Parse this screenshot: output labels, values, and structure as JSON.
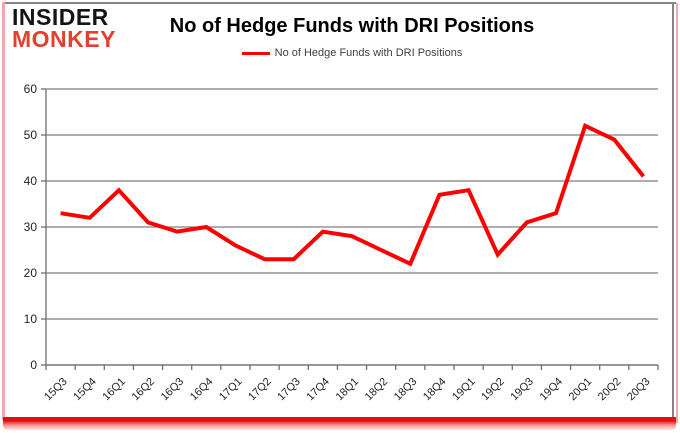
{
  "branding": {
    "logo_line1": "INSIDER",
    "logo_line2": "MONKEY"
  },
  "header": {
    "title": "No of Hedge Funds with DRI Positions"
  },
  "legend": {
    "label": "No of Hedge Funds with DRI Positions"
  },
  "chart_data": {
    "type": "line",
    "title": "No of Hedge Funds with DRI Positions",
    "xlabel": "",
    "ylabel": "",
    "categories": [
      "15Q3",
      "15Q4",
      "16Q1",
      "16Q2",
      "16Q3",
      "16Q4",
      "17Q1",
      "17Q2",
      "17Q3",
      "17Q4",
      "18Q1",
      "18Q2",
      "18Q3",
      "18Q4",
      "19Q1",
      "19Q2",
      "19Q3",
      "19Q4",
      "20Q1",
      "20Q2",
      "20Q3"
    ],
    "series": [
      {
        "name": "No of Hedge Funds with DRI Positions",
        "color": "#fe0000",
        "values": [
          33,
          32,
          38,
          31,
          29,
          30,
          26,
          23,
          23,
          29,
          28,
          25,
          22,
          37,
          38,
          24,
          31,
          33,
          52,
          49,
          41
        ]
      }
    ],
    "ylim": [
      0,
      60
    ],
    "yticks": [
      0,
      10,
      20,
      30,
      40,
      50,
      60
    ],
    "grid": true,
    "legend_position": "top-center"
  },
  "colors": {
    "line": "#fe0000",
    "grid": "#7f7f7f",
    "axis": "#6e6e6e",
    "tick_text": "#232323",
    "title_text": "#000000",
    "legend_text": "#3f3f3f",
    "logo_black": "#141414",
    "logo_red": "#e2422d",
    "border_gray": "#858585",
    "border_pink": "#f3a9a9",
    "bottom_bar": "#e21010"
  }
}
